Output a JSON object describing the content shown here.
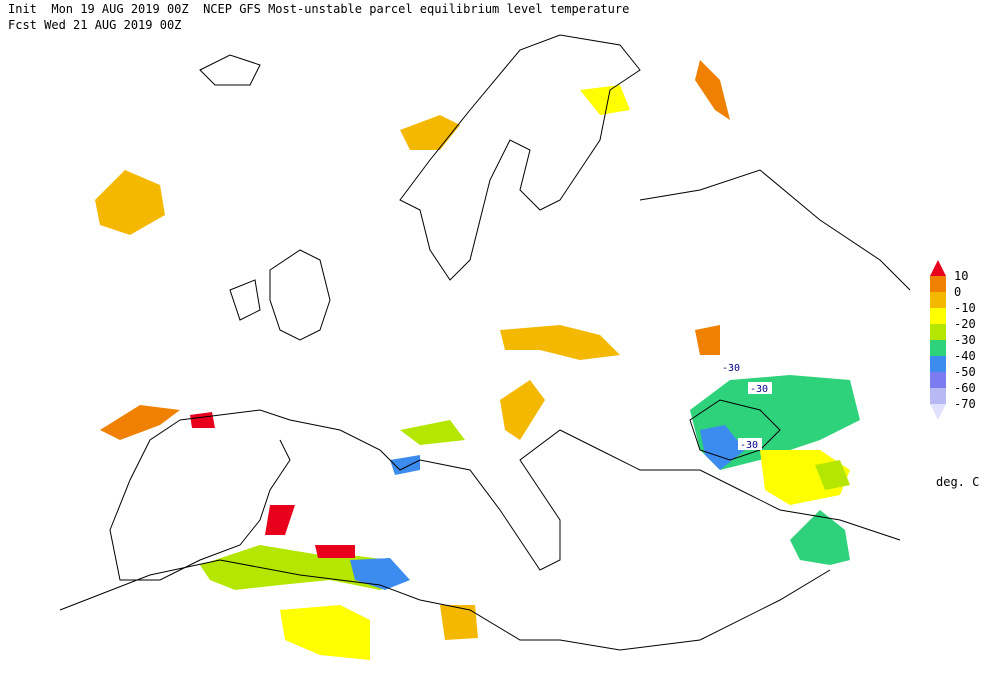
{
  "header": {
    "init_line": "Init  Mon 19 AUG 2019 00Z  NCEP GFS Most-unstable parcel equilibrium level temperature",
    "forecast_line": "Fcst Wed 21 AUG 2019 00Z"
  },
  "legend": {
    "levels": [
      10,
      0,
      -10,
      -20,
      -30,
      -40,
      -50,
      -60,
      -70
    ],
    "colors": [
      "#e8001c",
      "#f08000",
      "#f5b800",
      "#ffff00",
      "#b4e600",
      "#2ed27a",
      "#3c8cf0",
      "#7c7cf0",
      "#b8b8f4",
      "#e0e0ff"
    ],
    "unit": "deg. C"
  },
  "contour_labels": [
    -30,
    -30,
    -30
  ]
}
